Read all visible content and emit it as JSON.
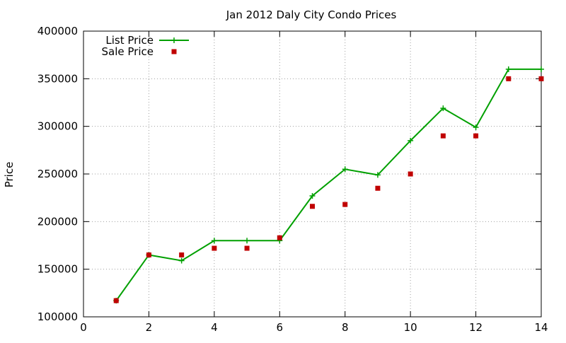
{
  "chart_data": {
    "type": "line",
    "title": "Jan 2012 Daly City Condo Prices",
    "xlabel": "",
    "ylabel": "Price",
    "xlim": [
      0,
      14
    ],
    "ylim": [
      100000,
      400000
    ],
    "xticks": [
      0,
      2,
      4,
      6,
      8,
      10,
      12,
      14
    ],
    "yticks": [
      100000,
      150000,
      200000,
      250000,
      300000,
      350000,
      400000
    ],
    "grid": true,
    "legend_position": "top-left",
    "series": [
      {
        "name": "List Price",
        "style": "line+cross",
        "color": "#00a000",
        "x": [
          1,
          2,
          3,
          4,
          5,
          6,
          7,
          8,
          9,
          10,
          11,
          12,
          13,
          14
        ],
        "y": [
          117000,
          165000,
          159000,
          180000,
          180000,
          180000,
          227000,
          255000,
          249000,
          285000,
          319000,
          299000,
          360000,
          360000
        ]
      },
      {
        "name": "Sale Price",
        "style": "square-points",
        "color": "#c00000",
        "x": [
          1,
          2,
          3,
          4,
          5,
          6,
          7,
          8,
          9,
          10,
          11,
          12,
          13,
          14
        ],
        "y": [
          117000,
          165000,
          165000,
          172000,
          172000,
          183000,
          216000,
          218000,
          235000,
          250000,
          290000,
          290000,
          350000,
          350000
        ]
      }
    ]
  }
}
